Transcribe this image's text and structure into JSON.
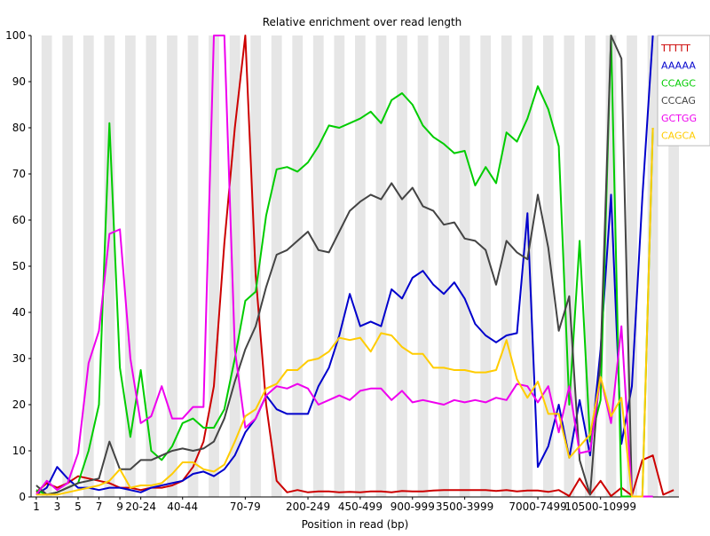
{
  "chart_data": {
    "type": "line",
    "title": "Relative enrichment over read length",
    "xlabel": "Position in read (bp)",
    "ylabel": "",
    "ylim": [
      0,
      100
    ],
    "yticks": [
      0,
      10,
      20,
      30,
      40,
      50,
      60,
      70,
      80,
      90,
      100
    ],
    "grid": "alternating vertical bands",
    "legend_position": "top-right",
    "x_tick_labels": [
      {
        "index": 0,
        "label": "1"
      },
      {
        "index": 2,
        "label": "3"
      },
      {
        "index": 4,
        "label": "5"
      },
      {
        "index": 6,
        "label": "7"
      },
      {
        "index": 8,
        "label": "9"
      },
      {
        "index": 10,
        "label": "20-24"
      },
      {
        "index": 14,
        "label": "40-44"
      },
      {
        "index": 20,
        "label": "70-79"
      },
      {
        "index": 26,
        "label": "200-249"
      },
      {
        "index": 31,
        "label": "450-499"
      },
      {
        "index": 36,
        "label": "900-999"
      },
      {
        "index": 41,
        "label": "3500-3999"
      },
      {
        "index": 48,
        "label": "7000-7499"
      },
      {
        "index": 54,
        "label": "10500-10999"
      }
    ],
    "series": [
      {
        "name": "TTTTT",
        "color": "#cc0000",
        "values": [
          1,
          3,
          2,
          3,
          4.5,
          4,
          3.5,
          3,
          2,
          2,
          1.5,
          2,
          2,
          2.5,
          3.5,
          6.5,
          12,
          24,
          55,
          80,
          100,
          48,
          20,
          3.5,
          1,
          1.5,
          1,
          1.2,
          1.2,
          1,
          1.1,
          1,
          1.2,
          1.2,
          1,
          1.3,
          1.2,
          1.2,
          1.4,
          1.5,
          1.5,
          1.5,
          1.5,
          1.5,
          1.3,
          1.5,
          1.2,
          1.4,
          1.4,
          1.1,
          1.5,
          0.2,
          4,
          0.5,
          3.5,
          0.2,
          2,
          0.3,
          8,
          9,
          0.5,
          1.5
        ]
      },
      {
        "name": "AAAAA",
        "color": "#0000cc",
        "values": [
          0.5,
          2,
          6.5,
          4,
          2,
          2,
          1.5,
          2,
          2,
          1.5,
          1,
          2,
          2.5,
          3,
          3.5,
          5,
          5.5,
          4.5,
          6,
          9,
          14,
          17,
          22,
          19,
          18,
          18,
          18,
          24,
          28,
          35,
          44,
          37,
          38,
          37,
          45,
          43,
          47.5,
          49,
          46,
          44,
          46.5,
          43,
          37.5,
          35,
          33.5,
          35,
          35.5,
          61.5,
          6.5,
          11,
          20,
          8.5,
          21,
          9,
          32,
          65.5,
          11.5,
          24,
          65,
          100
        ]
      },
      {
        "name": "CCAGC",
        "color": "#00cc00",
        "values": [
          1.5,
          0.5,
          1,
          2,
          3,
          10,
          20,
          81,
          28,
          13,
          27.5,
          10,
          8,
          11,
          16,
          17,
          15,
          15,
          19,
          30,
          42.5,
          44.5,
          61,
          71,
          71.5,
          70.5,
          72.5,
          76,
          80.5,
          80,
          81,
          82,
          83.5,
          81,
          86,
          87.5,
          85,
          80.5,
          78,
          76.5,
          74.5,
          75,
          67.5,
          71.5,
          68,
          79,
          77,
          82,
          89,
          84,
          76,
          20,
          55.5,
          12,
          21,
          100,
          0.1,
          0.1,
          0.1,
          80
        ]
      },
      {
        "name": "CCCAG",
        "color": "#444444",
        "values": [
          2.5,
          0.5,
          1,
          2,
          3,
          3.5,
          4,
          12,
          6,
          6,
          8,
          8,
          9,
          10,
          10.5,
          10,
          10.5,
          12,
          17,
          25,
          32,
          37,
          45.5,
          52.5,
          53.5,
          55.5,
          57.5,
          53.5,
          53,
          57.5,
          62,
          64,
          65.5,
          64.5,
          68,
          64.5,
          67,
          63,
          62,
          59,
          59.5,
          56,
          55.5,
          53.5,
          46,
          55.5,
          53,
          51.5,
          65.5,
          54,
          36,
          43.5,
          8,
          0.5,
          30,
          100,
          95,
          0.1,
          0.1,
          0.1
        ]
      },
      {
        "name": "GCTGG",
        "color": "#ee00ee",
        "values": [
          0.5,
          3.5,
          1.5,
          3,
          9.5,
          29,
          36,
          57,
          58,
          30,
          16,
          17.5,
          24,
          17,
          17,
          19.5,
          19.5,
          100,
          100,
          32,
          15,
          17,
          22,
          24,
          23.5,
          24.5,
          23.5,
          20,
          21,
          22,
          21,
          23,
          23.5,
          23.5,
          21,
          23,
          20.5,
          21,
          20.5,
          20,
          21,
          20.5,
          21,
          20.5,
          21.5,
          21,
          24.5,
          24,
          20.5,
          24,
          14,
          24,
          9.5,
          10,
          26,
          16,
          37,
          0.1,
          0.1,
          0.1
        ]
      },
      {
        "name": "CAGCA",
        "color": "#ffcc00",
        "values": [
          0.5,
          0.5,
          0.5,
          1,
          1.5,
          2,
          2.5,
          3.5,
          6,
          2,
          2.5,
          2.5,
          3,
          5,
          7.5,
          7.5,
          6,
          5.5,
          7,
          12,
          17.5,
          19,
          23.5,
          24.5,
          27.5,
          27.5,
          29.5,
          30,
          31.5,
          34.5,
          34,
          34.5,
          31.5,
          35.5,
          35,
          32.5,
          31,
          31,
          28,
          28,
          27.5,
          27.5,
          27,
          27,
          27.5,
          34,
          25.5,
          21.5,
          25,
          18,
          18,
          8.5,
          11,
          13.5,
          26,
          17.5,
          21.5,
          0.1,
          0.1,
          80
        ]
      }
    ]
  }
}
